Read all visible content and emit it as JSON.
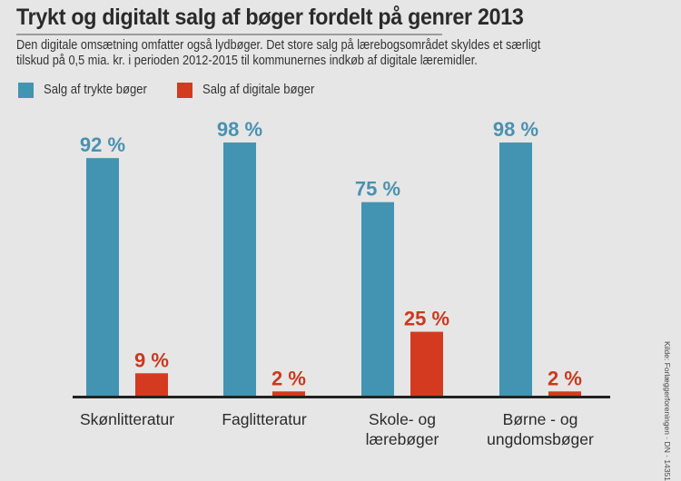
{
  "header": {
    "title": "Trykt og digitalt salg af bøger fordelt på genrer 2013",
    "subtitle_line1": "Den digitale omsætning omfatter også lydbøger. Det store salg på lærebogsområdet skyldes et særligt",
    "subtitle_line2": "tilskud på 0,5 mia. kr. i perioden 2012-2015 til kommunernes indkøb af digitale læremidler."
  },
  "source": "Kilde: Forlæggerforeningen · DN · 14351",
  "colors": {
    "printed": "#4394b3",
    "digital": "#d43a1f",
    "printed_label": "#4a91b0",
    "digital_label": "#c9391f",
    "axis": "#222222"
  },
  "chart_data": {
    "type": "bar",
    "title": "Trykt og digitalt salg af bøger fordelt på genrer 2013",
    "xlabel": "",
    "ylabel": "",
    "ylim": [
      0,
      100
    ],
    "grid": false,
    "legend_position": "top-left",
    "value_suffix": " %",
    "categories": [
      [
        "Skønlitteratur"
      ],
      [
        "Faglitteratur"
      ],
      [
        "Skole- og",
        "lærebøger"
      ],
      [
        "Børne - og",
        "ungdomsbøger"
      ]
    ],
    "series": [
      {
        "name": "Salg af trykte bøger",
        "values": [
          92,
          98,
          75,
          98
        ]
      },
      {
        "name": "Salg af digitale bøger",
        "values": [
          9,
          2,
          25,
          2
        ]
      }
    ]
  }
}
